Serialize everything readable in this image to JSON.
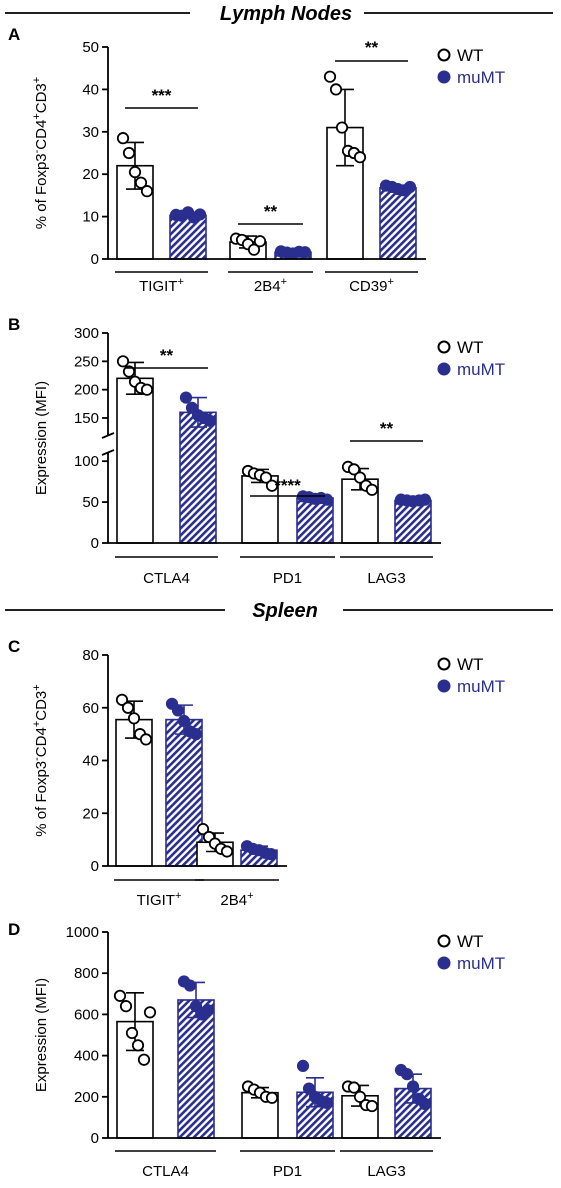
{
  "sections": {
    "top": "Lymph Nodes",
    "bottom": "Spleen"
  },
  "colors": {
    "wt_fill": "#ffffff",
    "mumt_fill": "#2a2e8f",
    "axis": "#000000"
  },
  "chart_data": [
    {
      "panel": "A",
      "type": "bar",
      "ylabel_main": "% of Foxp3",
      "ylabel_sup1": "-",
      "ylabel_mid": "CD4",
      "ylabel_sup2": "+",
      "ylabel_end": "CD3",
      "ylabel_sup3": "+",
      "ylim": [
        0,
        50
      ],
      "yticks": [
        "0",
        "10",
        "20",
        "30",
        "40",
        "50"
      ],
      "legend": [
        {
          "name": "WT"
        },
        {
          "name": "muMT"
        }
      ],
      "groups": [
        {
          "label": "TIGIT",
          "sup": "+",
          "sig": "***",
          "wt": {
            "mean": 22,
            "sd": 5.5,
            "points": [
              28.5,
              25,
              20.5,
              18,
              16
            ]
          },
          "mumt": {
            "mean": 10.3,
            "sd": 0.5,
            "points": [
              10.4,
              10.2,
              11,
              9.8,
              10.5
            ]
          }
        },
        {
          "label": "2B4",
          "sup": "+",
          "sig": "**",
          "wt": {
            "mean": 4,
            "sd": 1.4,
            "points": [
              4.8,
              4.5,
              3.5,
              2.2,
              4.2
            ]
          },
          "mumt": {
            "mean": 1.6,
            "sd": 0.3,
            "points": [
              1.8,
              1.5,
              1.3,
              1.7,
              1.6
            ]
          }
        },
        {
          "label": "CD39",
          "sup": "+",
          "sig": "**",
          "wt": {
            "mean": 31,
            "sd": 9,
            "points": [
              43,
              40,
              31,
              25.5,
              25,
              24
            ]
          },
          "mumt": {
            "mean": 16.8,
            "sd": 0.5,
            "points": [
              17.3,
              17,
              16.5,
              16.2,
              17
            ]
          }
        }
      ]
    },
    {
      "panel": "B",
      "type": "bar",
      "ylabel_main": "Expression (MFI)",
      "axis_break": {
        "lower": [
          0,
          110
        ],
        "upper": [
          120,
          300
        ]
      },
      "yticks_lower": [
        "0",
        "50",
        "100"
      ],
      "yticks_upper": [
        "150",
        "200",
        "250",
        "300"
      ],
      "legend": [
        {
          "name": "WT"
        },
        {
          "name": "muMT"
        }
      ],
      "groups": [
        {
          "label": "CTLA4",
          "sup": "",
          "sig": "**",
          "wt": {
            "mean": 220,
            "sd": 28,
            "points": [
              250,
              232,
              214,
              203,
              200
            ]
          },
          "mumt": {
            "mean": 160,
            "sd": 26,
            "points": [
              186,
              168,
              155,
              150,
              145
            ]
          }
        },
        {
          "label": "PD1",
          "sup": "",
          "sig": "****",
          "wt": {
            "mean": 82,
            "sd": 8,
            "points": [
              88,
              85,
              83,
              80,
              70
            ]
          },
          "mumt": {
            "mean": 55,
            "sd": 2,
            "points": [
              57,
              56,
              54,
              55,
              53
            ]
          }
        },
        {
          "label": "LAG3",
          "sup": "",
          "sig": "**",
          "wt": {
            "mean": 78,
            "sd": 13,
            "points": [
              93,
              90,
              80,
              70,
              65
            ]
          },
          "mumt": {
            "mean": 52,
            "sd": 1.5,
            "points": [
              53,
              52,
              51,
              52,
              53
            ]
          }
        }
      ]
    },
    {
      "panel": "C",
      "type": "bar",
      "ylabel_main": "% of Foxp3",
      "ylabel_sup1": "-",
      "ylabel_mid": "CD4",
      "ylabel_sup2": "+",
      "ylabel_end": "CD3",
      "ylabel_sup3": "+",
      "ylim": [
        0,
        80
      ],
      "yticks": [
        "0",
        "20",
        "40",
        "60",
        "80"
      ],
      "legend": [
        {
          "name": "WT"
        },
        {
          "name": "muMT"
        }
      ],
      "groups": [
        {
          "label": "TIGIT",
          "sup": "+",
          "sig": "",
          "wt": {
            "mean": 55.5,
            "sd": 7,
            "points": [
              63,
              60,
              56,
              50,
              48
            ]
          },
          "mumt": {
            "mean": 55.5,
            "sd": 5.5,
            "points": [
              61.5,
              59,
              55,
              51,
              50
            ]
          }
        },
        {
          "label": "2B4",
          "sup": "+",
          "sig": "",
          "wt": {
            "mean": 9,
            "sd": 3.5,
            "points": [
              14,
              11,
              8.5,
              6.5,
              5.5
            ]
          },
          "mumt": {
            "mean": 6,
            "sd": 1.5,
            "points": [
              7.5,
              6.5,
              6,
              5,
              4.5
            ]
          }
        }
      ]
    },
    {
      "panel": "D",
      "type": "bar",
      "ylabel_main": "Expression (MFI)",
      "ylim": [
        0,
        1000
      ],
      "yticks": [
        "0",
        "200",
        "400",
        "600",
        "800",
        "1000"
      ],
      "legend": [
        {
          "name": "WT"
        },
        {
          "name": "muMT"
        }
      ],
      "groups": [
        {
          "label": "CTLA4",
          "sup": "",
          "sig": "",
          "wt": {
            "mean": 565,
            "sd": 140,
            "points": [
              690,
              640,
              510,
              450,
              380,
              610
            ]
          },
          "mumt": {
            "mean": 670,
            "sd": 85,
            "points": [
              760,
              740,
              640,
              600,
              620
            ]
          }
        },
        {
          "label": "PD1",
          "sup": "",
          "sig": "",
          "wt": {
            "mean": 220,
            "sd": 25,
            "points": [
              250,
              235,
              220,
              200,
              195
            ]
          },
          "mumt": {
            "mean": 222,
            "sd": 70,
            "points": [
              350,
              240,
              200,
              180,
              170
            ]
          }
        },
        {
          "label": "LAG3",
          "sup": "",
          "sig": "",
          "wt": {
            "mean": 205,
            "sd": 50,
            "points": [
              250,
              245,
              200,
              160,
              155
            ]
          },
          "mumt": {
            "mean": 240,
            "sd": 70,
            "points": [
              330,
              310,
              250,
              190,
              165
            ]
          }
        }
      ]
    }
  ]
}
